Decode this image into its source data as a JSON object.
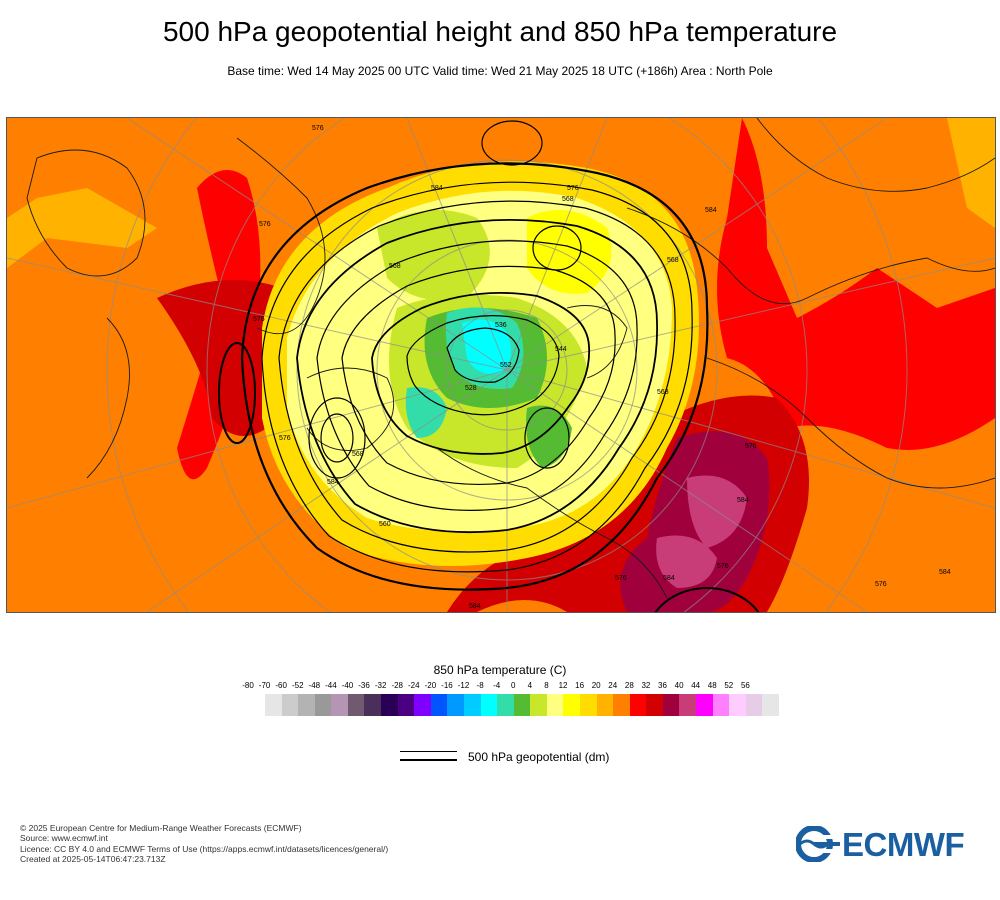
{
  "header": {
    "title": "500 hPa geopotential height and 850 hPa temperature",
    "subtitle": "Base time: Wed 14 May 2025 00 UTC Valid time: Wed 21 May 2025 18 UTC (+186h) Area : North Pole"
  },
  "map": {
    "contour_labels": [
      "576",
      "584",
      "576",
      "568",
      "576",
      "584",
      "568",
      "576",
      "568",
      "584",
      "576",
      "568",
      "536",
      "544",
      "528",
      "552",
      "560",
      "568",
      "576",
      "584",
      "576",
      "584",
      "576",
      "584",
      "576",
      "584"
    ]
  },
  "legend": {
    "temperature_title": "850 hPa temperature (C)",
    "ticks": [
      "-80",
      "-70",
      "-60",
      "-52",
      "-48",
      "-44",
      "-40",
      "-36",
      "-32",
      "-28",
      "-24",
      "-20",
      "-16",
      "-12",
      "-8",
      "-4",
      "0",
      "4",
      "8",
      "12",
      "16",
      "20",
      "24",
      "28",
      "32",
      "36",
      "40",
      "44",
      "48",
      "52",
      "56"
    ],
    "colors": [
      "#e6e6e6",
      "#cccccc",
      "#b3b3b3",
      "#999999",
      "#b495b4",
      "#6f5a6f",
      "#4a2f5a",
      "#2a0057",
      "#4b0082",
      "#8000ff",
      "#0055ff",
      "#0099ff",
      "#00ccff",
      "#00ffff",
      "#33ddaa",
      "#55bb33",
      "#c8e62a",
      "#ffff80",
      "#ffff00",
      "#ffdd00",
      "#ffb300",
      "#ff8000",
      "#ff0000",
      "#d20000",
      "#a0003c",
      "#c83c78",
      "#ff00ff",
      "#ff80ff",
      "#ffccff",
      "#e6cce6",
      "#e6e6e6"
    ],
    "geopotential_label": "500 hPa geopotential (dm)"
  },
  "footer": {
    "copyright": "© 2025 European Centre for Medium-Range Weather Forecasts (ECMWF)",
    "source": "Source: www.ecmwf.int",
    "licence": "Licence: CC BY 4.0 and ECMWF Terms of Use (https://apps.ecmwf.int/datasets/licences/general/)",
    "created": "Created at 2025-05-14T06:47:23.713Z"
  },
  "logo": {
    "text": "ECMWF",
    "color": "#1a5fa0"
  }
}
